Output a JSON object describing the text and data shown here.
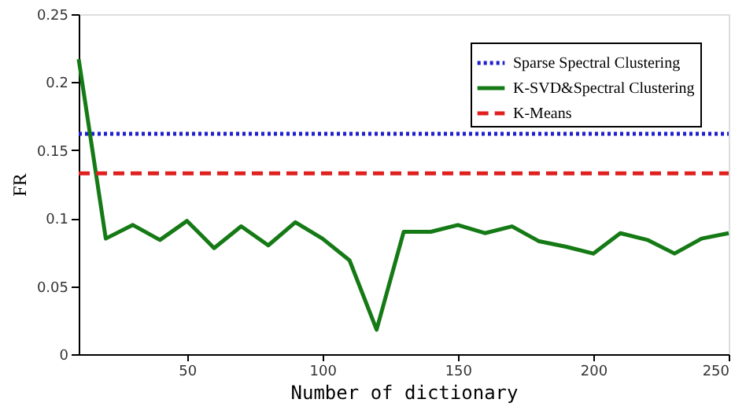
{
  "chart_data": {
    "type": "line",
    "xlabel": "Number of dictionary",
    "ylabel": "FR",
    "xlim": [
      10,
      250
    ],
    "xticks": [
      50,
      100,
      150,
      200,
      250
    ],
    "ylim": [
      0,
      0.25
    ],
    "yticks": [
      0,
      0.05,
      0.1,
      0.15,
      0.2,
      0.25
    ],
    "grid": false,
    "legend": "top right",
    "marker": "none",
    "series": [
      {
        "name": "Sparse Spectral Clustering",
        "color": "#1f1fd0",
        "line_style": "dotted",
        "x": [
          10,
          250
        ],
        "values": [
          0.162,
          0.162
        ]
      },
      {
        "name": "K-SVD&Spectral Clustering",
        "color": "#157a15",
        "line_style": "solid",
        "x": [
          10,
          20,
          30,
          40,
          50,
          60,
          70,
          80,
          90,
          100,
          110,
          120,
          130,
          140,
          150,
          160,
          170,
          180,
          190,
          200,
          210,
          220,
          230,
          240,
          250
        ],
        "values": [
          0.217,
          0.085,
          0.095,
          0.084,
          0.098,
          0.078,
          0.094,
          0.08,
          0.097,
          0.085,
          0.069,
          0.018,
          0.09,
          0.09,
          0.095,
          0.089,
          0.094,
          0.083,
          0.079,
          0.074,
          0.089,
          0.084,
          0.074,
          0.085,
          0.089
        ]
      },
      {
        "name": "K-Means",
        "color": "#e01f1f",
        "line_style": "dashed",
        "x": [
          10,
          250
        ],
        "values": [
          0.133,
          0.133
        ]
      }
    ]
  }
}
